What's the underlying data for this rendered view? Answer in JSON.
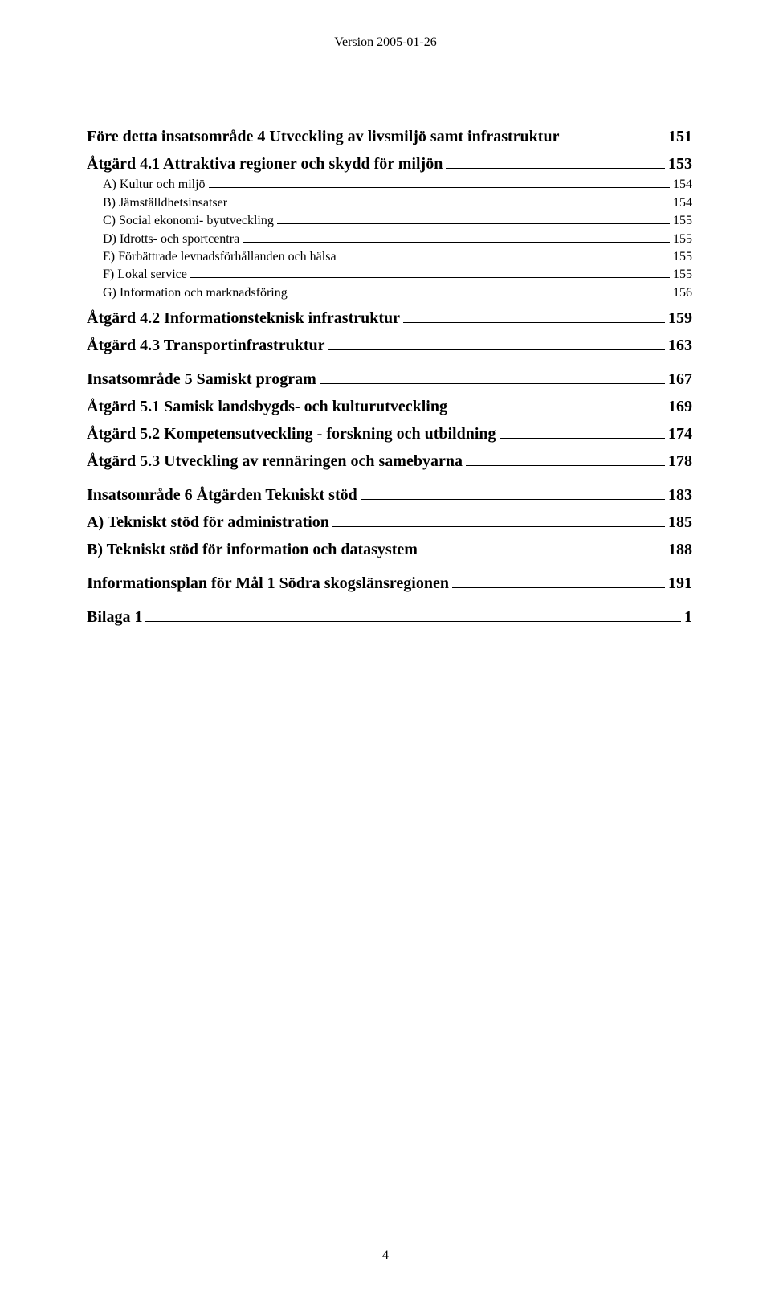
{
  "header": {
    "version": "Version 2005-01-26"
  },
  "footer": {
    "page": "4"
  },
  "toc": [
    {
      "style": "heading",
      "bold": true,
      "label": "Före detta insatsområde 4 Utveckling av livsmiljö samt infrastruktur",
      "page": "151"
    },
    {
      "style": "boldsub",
      "bold": true,
      "label": "Åtgärd 4.1 Attraktiva regioner och skydd för miljön",
      "page": "153"
    },
    {
      "style": "sub",
      "bold": false,
      "label": "A) Kultur och miljö",
      "page": "154"
    },
    {
      "style": "sub",
      "bold": false,
      "label": "B) Jämställdhetsinsatser",
      "page": "154"
    },
    {
      "style": "sub",
      "bold": false,
      "label": "C) Social ekonomi- byutveckling",
      "page": "155"
    },
    {
      "style": "sub",
      "bold": false,
      "label": "D) Idrotts- och sportcentra",
      "page": "155"
    },
    {
      "style": "sub",
      "bold": false,
      "label": "E) Förbättrade levnadsförhållanden och hälsa",
      "page": "155"
    },
    {
      "style": "sub",
      "bold": false,
      "label": "F) Lokal service",
      "page": "155"
    },
    {
      "style": "sub",
      "bold": false,
      "label": "G) Information och marknadsföring",
      "page": "156"
    },
    {
      "style": "boldsub",
      "bold": true,
      "label": "Åtgärd 4.2 Informationsteknisk infrastruktur",
      "page": "159"
    },
    {
      "style": "boldsub",
      "bold": true,
      "label": "Åtgärd 4.3 Transportinfrastruktur",
      "page": "163"
    },
    {
      "style": "heading",
      "bold": true,
      "label": "Insatsområde 5 Samiskt program",
      "page": "167"
    },
    {
      "style": "boldsub",
      "bold": true,
      "label": "Åtgärd 5.1 Samisk landsbygds- och kulturutveckling",
      "page": "169"
    },
    {
      "style": "boldsub",
      "bold": true,
      "label": "Åtgärd 5.2 Kompetensutveckling - forskning och utbildning",
      "page": "174"
    },
    {
      "style": "boldsub",
      "bold": true,
      "label": "Åtgärd 5.3 Utveckling av rennäringen och samebyarna",
      "page": "178"
    },
    {
      "style": "heading",
      "bold": true,
      "label": "Insatsområde 6 Åtgärden Tekniskt stöd",
      "page": "183"
    },
    {
      "style": "boldsub",
      "bold": true,
      "label": "A) Tekniskt stöd för administration",
      "page": "185"
    },
    {
      "style": "boldsub",
      "bold": true,
      "label": "B) Tekniskt stöd för information och datasystem",
      "page": "188"
    },
    {
      "style": "heading",
      "bold": true,
      "label": "Informationsplan för Mål 1 Södra skogslänsregionen",
      "page": "191"
    },
    {
      "style": "heading",
      "bold": true,
      "label": "Bilaga 1",
      "page": "1"
    }
  ]
}
